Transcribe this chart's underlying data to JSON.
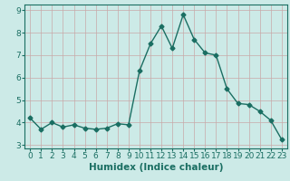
{
  "x": [
    0,
    1,
    2,
    3,
    4,
    5,
    6,
    7,
    8,
    9,
    10,
    11,
    12,
    13,
    14,
    15,
    16,
    17,
    18,
    19,
    20,
    21,
    22,
    23
  ],
  "y": [
    4.2,
    3.7,
    4.0,
    3.8,
    3.9,
    3.75,
    3.7,
    3.75,
    3.95,
    3.9,
    6.3,
    7.5,
    8.3,
    7.3,
    8.8,
    7.7,
    7.1,
    7.0,
    5.5,
    4.85,
    4.8,
    4.5,
    4.1,
    3.25
  ],
  "line_color": "#1a6e62",
  "marker": "D",
  "marker_size": 2.5,
  "bg_color": "#cceae7",
  "grid_major_color": "#b8d4d0",
  "grid_minor_color": "#d4e8e5",
  "xlabel": "Humidex (Indice chaleur)",
  "xlim": [
    -0.5,
    23.5
  ],
  "ylim": [
    2.85,
    9.25
  ],
  "yticks": [
    3,
    4,
    5,
    6,
    7,
    8,
    9
  ],
  "xticks": [
    0,
    1,
    2,
    3,
    4,
    5,
    6,
    7,
    8,
    9,
    10,
    11,
    12,
    13,
    14,
    15,
    16,
    17,
    18,
    19,
    20,
    21,
    22,
    23
  ],
  "xlabel_fontsize": 7.5,
  "tick_fontsize": 6.5
}
